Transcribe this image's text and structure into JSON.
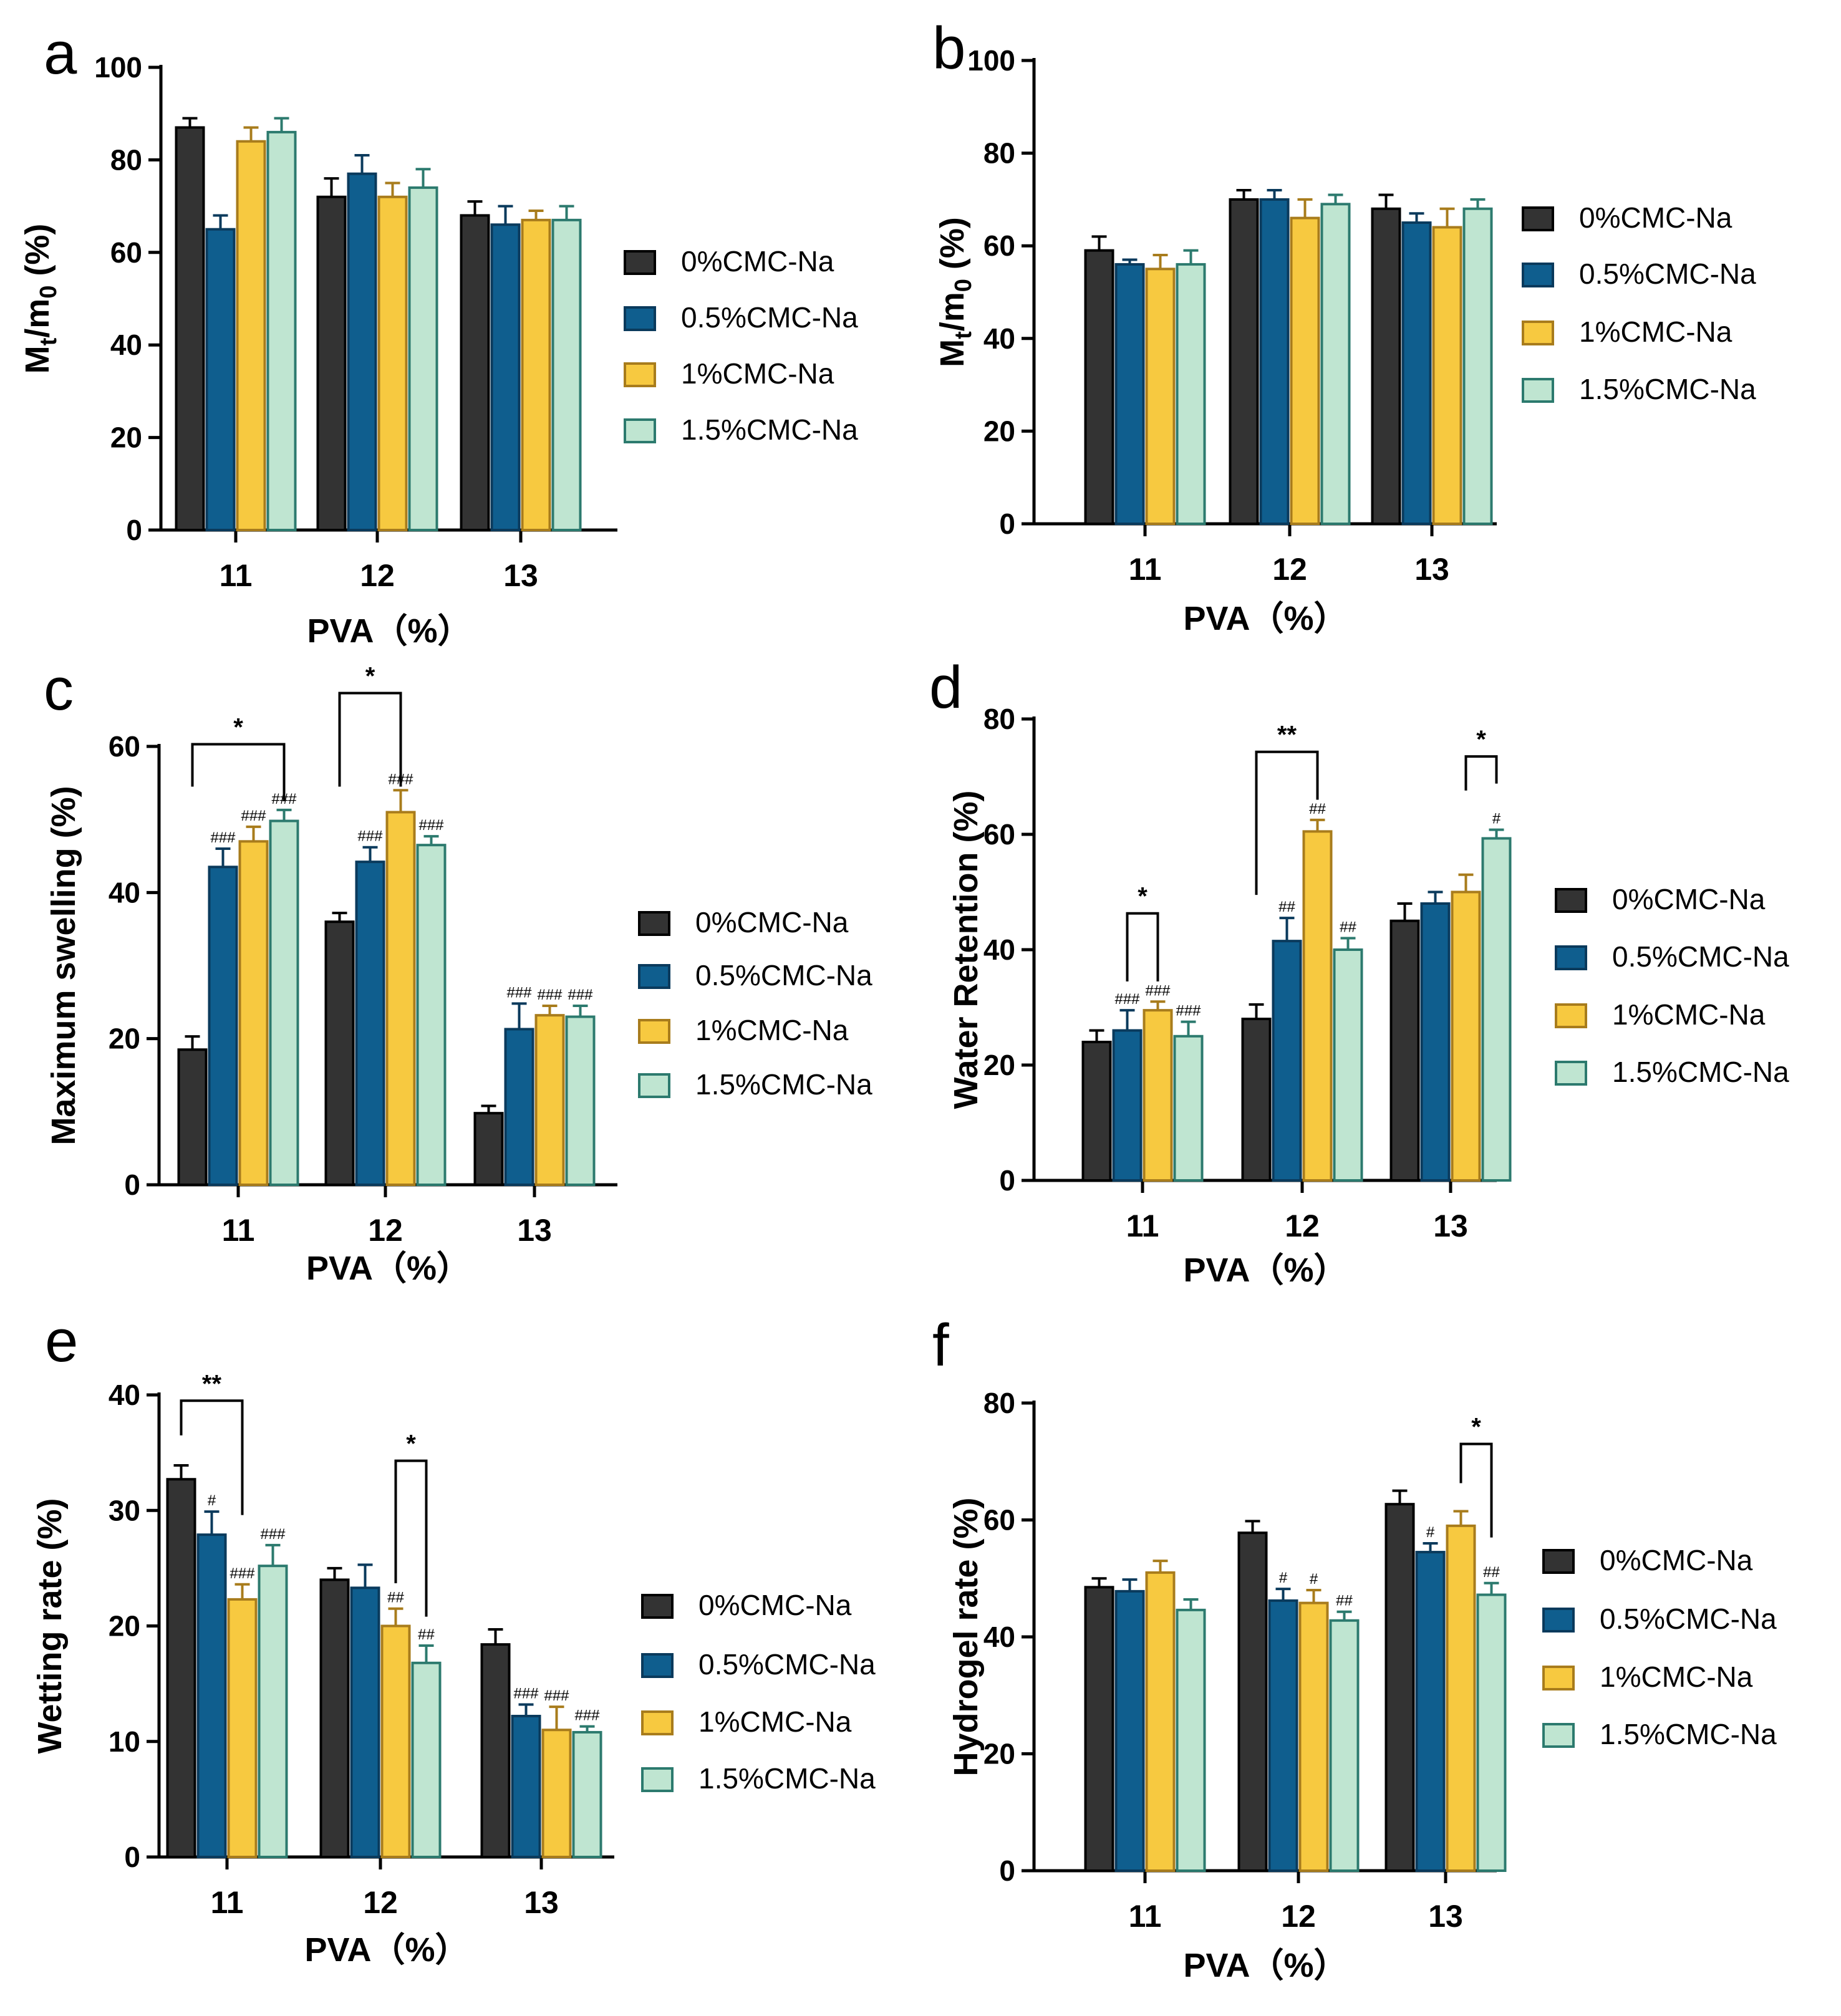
{
  "series_style": [
    {
      "name": "0%CMC-Na",
      "fill": "#333333",
      "stroke": "#000000"
    },
    {
      "name": "0.5%CMC-Na",
      "fill": "#0f5e8e",
      "stroke": "#0a3a5c"
    },
    {
      "name": "1%CMC-Na",
      "fill": "#f7c940",
      "stroke": "#a87c1c"
    },
    {
      "name": "1.5%CMC-Na",
      "fill": "#bfe5d1",
      "stroke": "#2c7a6e"
    }
  ],
  "chart_data": [
    {
      "panel": "a",
      "type": "bar",
      "xlabel": "PVA（%）",
      "ylabel_main": "M",
      "ylabel_sub1": "t",
      "ylabel_mid": "/m",
      "ylabel_sub2": "0",
      "ylabel_end": " (%)",
      "categories": [
        "11",
        "12",
        "13"
      ],
      "ylim": [
        0,
        100
      ],
      "yticks": [
        0,
        20,
        40,
        60,
        80,
        100
      ],
      "series": [
        {
          "name": "0%CMC-Na",
          "values": [
            87,
            72,
            68
          ],
          "errors": [
            2,
            4,
            3
          ]
        },
        {
          "name": "0.5%CMC-Na",
          "values": [
            65,
            77,
            66
          ],
          "errors": [
            3,
            4,
            4
          ]
        },
        {
          "name": "1%CMC-Na",
          "values": [
            84,
            72,
            67
          ],
          "errors": [
            3,
            3,
            2
          ]
        },
        {
          "name": "1.5%CMC-Na",
          "values": [
            86,
            74,
            67
          ],
          "errors": [
            3,
            4,
            3
          ]
        }
      ],
      "marks": [],
      "brackets": []
    },
    {
      "panel": "b",
      "type": "bar",
      "xlabel": "PVA（%）",
      "ylabel_main": "M",
      "ylabel_sub1": "t",
      "ylabel_mid": "/m",
      "ylabel_sub2": "0",
      "ylabel_end": " (%)",
      "categories": [
        "11",
        "12",
        "13"
      ],
      "ylim": [
        0,
        100
      ],
      "yticks": [
        0,
        20,
        40,
        60,
        80,
        100
      ],
      "series": [
        {
          "name": "0%CMC-Na",
          "values": [
            59,
            70,
            68
          ],
          "errors": [
            3,
            2,
            3
          ]
        },
        {
          "name": "0.5%CMC-Na",
          "values": [
            56,
            70,
            65
          ],
          "errors": [
            1,
            2,
            2
          ]
        },
        {
          "name": "1%CMC-Na",
          "values": [
            55,
            66,
            64
          ],
          "errors": [
            3,
            4,
            4
          ]
        },
        {
          "name": "1.5%CMC-Na",
          "values": [
            56,
            69,
            68
          ],
          "errors": [
            3,
            2,
            2
          ]
        }
      ],
      "marks": [],
      "brackets": []
    },
    {
      "panel": "c",
      "type": "bar",
      "xlabel": "PVA（%）",
      "ylabel": "Maximum swelling (%)",
      "categories": [
        "11",
        "12",
        "13"
      ],
      "ylim": [
        0,
        60
      ],
      "yticks": [
        0,
        20,
        40,
        60
      ],
      "series": [
        {
          "name": "0%CMC-Na",
          "values": [
            18.5,
            36,
            9.8
          ],
          "errors": [
            1.8,
            1.2,
            1.0
          ]
        },
        {
          "name": "0.5%CMC-Na",
          "values": [
            43.5,
            44.2,
            21.3
          ],
          "errors": [
            2.5,
            2.0,
            3.5
          ]
        },
        {
          "name": "1%CMC-Na",
          "values": [
            47,
            51,
            23.2
          ],
          "errors": [
            2.0,
            3.0,
            1.3
          ]
        },
        {
          "name": "1.5%CMC-Na",
          "values": [
            49.8,
            46.5,
            23.0
          ],
          "errors": [
            1.5,
            1.2,
            1.5
          ]
        }
      ],
      "marks": [
        {
          "cat": 0,
          "series": 1,
          "text": "###"
        },
        {
          "cat": 0,
          "series": 2,
          "text": "###"
        },
        {
          "cat": 0,
          "series": 3,
          "text": "###"
        },
        {
          "cat": 1,
          "series": 1,
          "text": "###"
        },
        {
          "cat": 1,
          "series": 2,
          "text": "###"
        },
        {
          "cat": 1,
          "series": 3,
          "text": "###"
        },
        {
          "cat": 2,
          "series": 1,
          "text": "###"
        },
        {
          "cat": 2,
          "series": 2,
          "text": "###"
        },
        {
          "cat": 2,
          "series": 3,
          "text": "###"
        }
      ],
      "brackets": [
        {
          "cat": 0,
          "from": 0,
          "to": 3,
          "top": 60.3,
          "left_end": 54.5,
          "right_end": 52.5,
          "text": "*"
        },
        {
          "cat": 1,
          "from": 0,
          "to": 2,
          "top": 67.3,
          "left_end": 54.5,
          "right_end": 54.5,
          "text": "*"
        }
      ]
    },
    {
      "panel": "d",
      "type": "bar",
      "xlabel": "PVA（%）",
      "ylabel": "Water Retention (%)",
      "categories": [
        "11",
        "12",
        "13"
      ],
      "ylim": [
        0,
        80
      ],
      "yticks": [
        0,
        20,
        40,
        60,
        80
      ],
      "series": [
        {
          "name": "0%CMC-Na",
          "values": [
            24,
            28,
            45
          ],
          "errors": [
            2,
            2.5,
            3
          ]
        },
        {
          "name": "0.5%CMC-Na",
          "values": [
            26,
            41.5,
            48
          ],
          "errors": [
            3.5,
            4,
            2
          ]
        },
        {
          "name": "1%CMC-Na",
          "values": [
            29.5,
            60.5,
            50
          ],
          "errors": [
            1.5,
            2,
            3
          ]
        },
        {
          "name": "1.5%CMC-Na",
          "values": [
            25,
            40,
            59.3
          ],
          "errors": [
            2.5,
            2,
            1.5
          ]
        }
      ],
      "marks": [
        {
          "cat": 0,
          "series": 1,
          "text": "###"
        },
        {
          "cat": 0,
          "series": 2,
          "text": "###"
        },
        {
          "cat": 0,
          "series": 3,
          "text": "###"
        },
        {
          "cat": 1,
          "series": 1,
          "text": "##"
        },
        {
          "cat": 1,
          "series": 2,
          "text": "##"
        },
        {
          "cat": 1,
          "series": 3,
          "text": "##"
        },
        {
          "cat": 2,
          "series": 3,
          "text": "#"
        }
      ],
      "brackets": [
        {
          "cat": 0,
          "from": 1,
          "to": 2,
          "top": 46.3,
          "left_end": 34.5,
          "right_end": 34.5,
          "text": "*"
        },
        {
          "cat": 1,
          "from": 0,
          "to": 2,
          "top": 74.3,
          "left_end": 49.5,
          "right_end": 66.0,
          "text": "**"
        },
        {
          "cat": 2,
          "from": 2,
          "to": 3,
          "top": 73.5,
          "left_end": 67.6,
          "right_end": 68.8,
          "text": "*"
        }
      ]
    },
    {
      "panel": "e",
      "type": "bar",
      "xlabel": "PVA（%）",
      "ylabel": "Wetting rate (%)",
      "categories": [
        "11",
        "12",
        "13"
      ],
      "ylim": [
        0,
        40
      ],
      "yticks": [
        0,
        10,
        20,
        30,
        40
      ],
      "series": [
        {
          "name": "0%CMC-Na",
          "values": [
            32.7,
            24,
            18.4
          ],
          "errors": [
            1.2,
            1.0,
            1.3
          ]
        },
        {
          "name": "0.5%CMC-Na",
          "values": [
            27.9,
            23.3,
            12.2
          ],
          "errors": [
            2.0,
            2.0,
            1.0
          ]
        },
        {
          "name": "1%CMC-Na",
          "values": [
            22.3,
            20,
            11.0
          ],
          "errors": [
            1.3,
            1.5,
            2.0
          ]
        },
        {
          "name": "1.5%CMC-Na",
          "values": [
            25.2,
            16.8,
            10.8
          ],
          "errors": [
            1.8,
            1.5,
            0.5
          ]
        }
      ],
      "marks": [
        {
          "cat": 0,
          "series": 1,
          "text": "#"
        },
        {
          "cat": 0,
          "series": 2,
          "text": "###"
        },
        {
          "cat": 0,
          "series": 3,
          "text": "###"
        },
        {
          "cat": 1,
          "series": 2,
          "text": "##"
        },
        {
          "cat": 1,
          "series": 3,
          "text": "##"
        },
        {
          "cat": 2,
          "series": 1,
          "text": "###"
        },
        {
          "cat": 2,
          "series": 2,
          "text": "###"
        },
        {
          "cat": 2,
          "series": 3,
          "text": "###"
        }
      ],
      "brackets": [
        {
          "cat": 0,
          "from": 0,
          "to": 2,
          "top": 39.5,
          "left_end": 36.5,
          "right_end": 29.6,
          "text": "**"
        },
        {
          "cat": 1,
          "from": 2,
          "to": 3,
          "top": 34.3,
          "left_end": 23.7,
          "right_end": 20.8,
          "text": "*"
        }
      ]
    },
    {
      "panel": "f",
      "type": "bar",
      "xlabel": "PVA（%）",
      "ylabel": "Hydrogel rate (%)",
      "categories": [
        "11",
        "12",
        "13"
      ],
      "ylim": [
        0,
        80
      ],
      "yticks": [
        0,
        20,
        40,
        60,
        80
      ],
      "series": [
        {
          "name": "0%CMC-Na",
          "values": [
            48.5,
            57.8,
            62.7
          ],
          "errors": [
            1.5,
            2.0,
            2.3
          ]
        },
        {
          "name": "0.5%CMC-Na",
          "values": [
            47.8,
            46.2,
            54.5
          ],
          "errors": [
            2.0,
            2.0,
            1.5
          ]
        },
        {
          "name": "1%CMC-Na",
          "values": [
            51,
            45.8,
            59
          ],
          "errors": [
            2.0,
            2.2,
            2.5
          ]
        },
        {
          "name": "1.5%CMC-Na",
          "values": [
            44.6,
            42.8,
            47.2
          ],
          "errors": [
            1.8,
            1.5,
            2.0
          ]
        }
      ],
      "marks": [
        {
          "cat": 1,
          "series": 1,
          "text": "#"
        },
        {
          "cat": 1,
          "series": 2,
          "text": "#"
        },
        {
          "cat": 1,
          "series": 3,
          "text": "##"
        },
        {
          "cat": 2,
          "series": 1,
          "text": "#"
        },
        {
          "cat": 2,
          "series": 3,
          "text": "##"
        }
      ],
      "brackets": [
        {
          "cat": 2,
          "from": 2,
          "to": 3,
          "top": 73.0,
          "left_end": 66.3,
          "right_end": 57.0,
          "text": "*"
        }
      ]
    }
  ]
}
